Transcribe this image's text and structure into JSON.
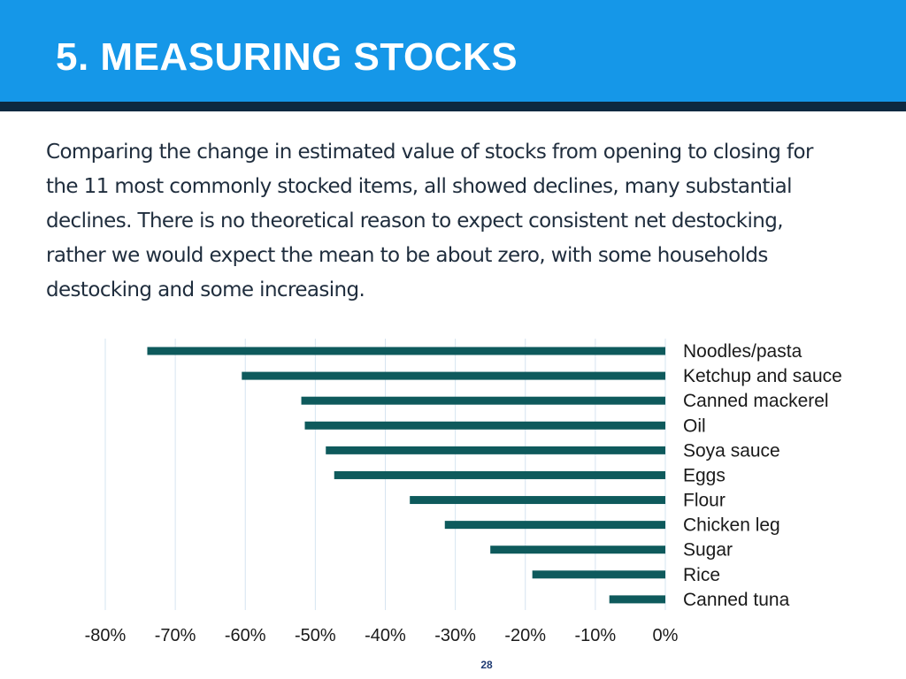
{
  "slide": {
    "title": "5. MEASURING STOCKS",
    "body_lines": [
      "Comparing the change in estimated value of stocks from opening to closing for",
      "the 11 most commonly stocked items, all showed declines, many substantial",
      "declines.  There is no theoretical reason to expect consistent net destocking,",
      "rather we would expect the mean to be about zero, with some households",
      "destocking and some increasing."
    ],
    "page_number": "28"
  },
  "colors": {
    "header": "#1597e8",
    "header_rule": "#0d2940",
    "bar": "#0e5a5c",
    "grid": "#d6e4f0"
  },
  "chart_data": {
    "type": "bar",
    "orientation": "horizontal",
    "categories": [
      "Noodles/pasta",
      "Ketchup and sauce",
      "Canned mackerel",
      "Oil",
      "Soya sauce",
      "Eggs",
      "Flour",
      "Chicken leg",
      "Sugar",
      "Rice",
      "Canned tuna"
    ],
    "values": [
      -74,
      -60.5,
      -52,
      -51.5,
      -48.5,
      -47.3,
      -36.5,
      -31.5,
      -25,
      -19,
      -8
    ],
    "x_ticks": [
      "-80%",
      "-70%",
      "-60%",
      "-50%",
      "-40%",
      "-30%",
      "-20%",
      "-10%",
      "0%"
    ],
    "xlim": [
      -80,
      0
    ],
    "grid": true,
    "legend": "none",
    "title": "",
    "xlabel": "",
    "ylabel": ""
  }
}
